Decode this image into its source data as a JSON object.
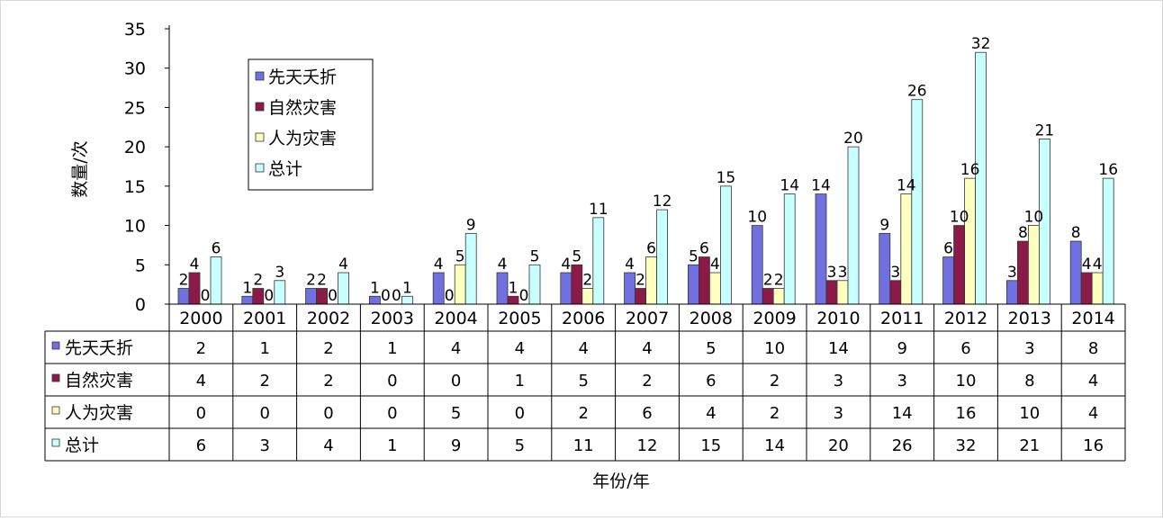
{
  "chart_data": {
    "type": "bar",
    "title": "",
    "xlabel": "年份/年",
    "ylabel": "数量/次",
    "ylim": [
      0,
      35
    ],
    "yticks": [
      0,
      5,
      10,
      15,
      20,
      25,
      30,
      35
    ],
    "grid": false,
    "legend_position": "top-left",
    "categories": [
      "2000",
      "2001",
      "2002",
      "2003",
      "2004",
      "2005",
      "2006",
      "2007",
      "2008",
      "2009",
      "2010",
      "2011",
      "2012",
      "2013",
      "2014"
    ],
    "series": [
      {
        "name": "先天夭折",
        "color": "#7070e0",
        "values": [
          2,
          1,
          2,
          1,
          4,
          4,
          4,
          4,
          5,
          10,
          14,
          9,
          6,
          3,
          8
        ]
      },
      {
        "name": "自然灾害",
        "color": "#8b1a48",
        "values": [
          4,
          2,
          2,
          0,
          0,
          1,
          5,
          2,
          6,
          2,
          3,
          3,
          10,
          8,
          4
        ]
      },
      {
        "name": "人为灾害",
        "color": "#ffffc0",
        "values": [
          0,
          0,
          0,
          0,
          5,
          0,
          2,
          6,
          4,
          2,
          3,
          14,
          16,
          10,
          4
        ]
      },
      {
        "name": "总计",
        "color": "#c8ffff",
        "values": [
          6,
          3,
          4,
          1,
          9,
          5,
          11,
          12,
          15,
          14,
          20,
          26,
          32,
          21,
          16
        ]
      }
    ]
  }
}
